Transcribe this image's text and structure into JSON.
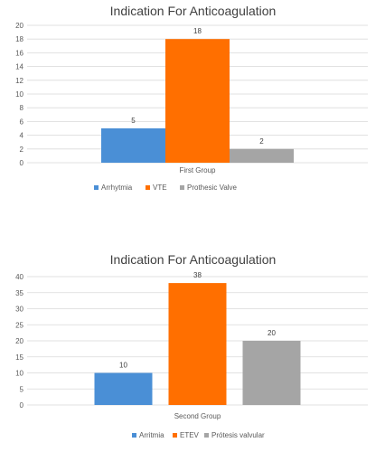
{
  "chart_data": [
    {
      "type": "bar",
      "title": "Indication For Anticoagulation",
      "categories": [
        "First Group"
      ],
      "series": [
        {
          "name": "Arrhytmia",
          "values": [
            5
          ],
          "color": "#4a8fd6"
        },
        {
          "name": "VTE",
          "values": [
            18
          ],
          "color": "#ff6f00"
        },
        {
          "name": "Prothesic Valve",
          "values": [
            2
          ],
          "color": "#a5a5a5"
        }
      ],
      "ylim": [
        0,
        20
      ],
      "yticks": [
        0,
        2,
        4,
        6,
        8,
        10,
        12,
        14,
        16,
        18,
        20
      ],
      "grid": true,
      "legend": "bottom"
    },
    {
      "type": "bar",
      "title": "Indication For Anticoagulation",
      "categories": [
        "Second Group"
      ],
      "series": [
        {
          "name": "Arritmia",
          "values": [
            10
          ],
          "color": "#4a8fd6"
        },
        {
          "name": "ETEV",
          "values": [
            38
          ],
          "color": "#ff6f00"
        },
        {
          "name": "Prótesis valvular",
          "values": [
            20
          ],
          "color": "#a5a5a5"
        }
      ],
      "ylim": [
        0,
        40
      ],
      "yticks": [
        0,
        5,
        10,
        15,
        20,
        25,
        30,
        35,
        40
      ],
      "grid": true,
      "legend": "bottom"
    }
  ]
}
